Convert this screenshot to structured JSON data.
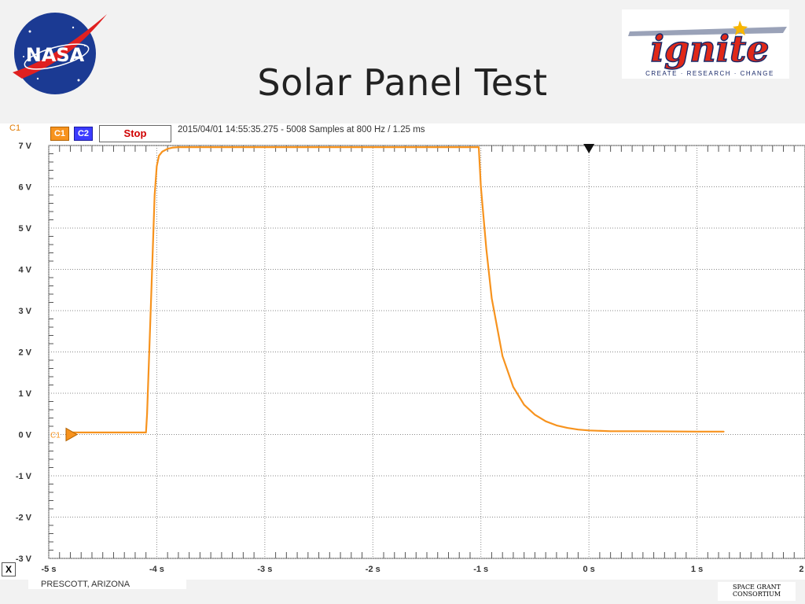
{
  "slide": {
    "title": "Solar Panel Test",
    "location": "PRESCOTT, ARIZONA",
    "footer_logo": [
      "SPACE GRANT",
      "CONSORTIUM"
    ],
    "logos": {
      "nasa": "NASA",
      "ignite": "ignite",
      "ignite_tagline": "CREATE · RESEARCH · CHANGE"
    }
  },
  "scope": {
    "channel_label": "C1",
    "c1_button": "C1",
    "c2_button": "C2",
    "stop_button": "Stop",
    "info": "2015/04/01  14:55:35.275 - 5008 Samples at 800 Hz / 1.25 ms",
    "x_button": "X",
    "marker_label": "C1"
  },
  "colors": {
    "trace": "#f7931e",
    "grid": "#8a8a8a",
    "axis_text": "#333333",
    "stop_text": "#d00000"
  },
  "chart_data": {
    "type": "line",
    "title": "",
    "xlabel": "",
    "ylabel": "",
    "xlim": [
      -5,
      2
    ],
    "ylim": [
      -3,
      7
    ],
    "x_ticks": [
      "-5 s",
      "-4 s",
      "-3 s",
      "-2 s",
      "-1 s",
      "0 s",
      "1 s",
      "2 s"
    ],
    "y_ticks": [
      "7 V",
      "6 V",
      "5 V",
      "4 V",
      "3 V",
      "2 V",
      "1 V",
      "0 V",
      "-1 V",
      "-2 V",
      "-3 V"
    ],
    "grid": true,
    "series": [
      {
        "x": [
          -4.8,
          -4.1,
          -4.09,
          -4.05,
          -4.02,
          -4.0,
          -3.98,
          -3.95,
          -3.9,
          -3.85,
          -3.8,
          -3.5,
          -2.0,
          -1.05,
          -1.02,
          -1.0,
          -0.95,
          -0.9,
          -0.8,
          -0.7,
          -0.6,
          -0.5,
          -0.4,
          -0.3,
          -0.2,
          -0.1,
          0.0,
          0.2,
          0.5,
          1.0,
          1.25
        ],
        "y": [
          0.05,
          0.05,
          0.5,
          3.5,
          5.8,
          6.5,
          6.75,
          6.85,
          6.92,
          6.95,
          6.96,
          6.96,
          6.96,
          6.96,
          6.96,
          6.0,
          4.5,
          3.3,
          1.9,
          1.15,
          0.72,
          0.48,
          0.32,
          0.22,
          0.16,
          0.12,
          0.1,
          0.08,
          0.08,
          0.07,
          0.07
        ]
      }
    ]
  }
}
